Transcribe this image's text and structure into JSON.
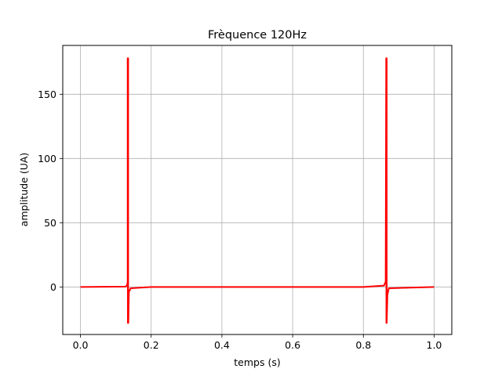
{
  "chart_data": {
    "type": "line",
    "title": "Frèquence 120Hz",
    "xlabel": "temps (s)",
    "ylabel": "amplitude (UA)",
    "xlim": [
      -0.05,
      1.05
    ],
    "ylim": [
      -37,
      188
    ],
    "xticks": [
      0.0,
      0.2,
      0.4,
      0.6,
      0.8,
      1.0
    ],
    "xtick_labels": [
      "0.0",
      "0.2",
      "0.4",
      "0.6",
      "0.8",
      "1.0"
    ],
    "yticks": [
      0,
      50,
      100,
      150
    ],
    "ytick_labels": [
      "0",
      "50",
      "100",
      "150"
    ],
    "grid": true,
    "legend": "none",
    "series": [
      {
        "color": "#ff0000",
        "x": [
          0.0,
          0.128,
          0.132,
          0.1335,
          0.1335,
          0.134,
          0.134,
          0.1345,
          0.1345,
          0.135,
          0.135,
          0.1355,
          0.137,
          0.142,
          0.2,
          0.4,
          0.6,
          0.8,
          0.858,
          0.863,
          0.8645,
          0.8645,
          0.865,
          0.865,
          0.8655,
          0.8655,
          0.866,
          0.866,
          0.868,
          0.872,
          1.0
        ],
        "y": [
          0,
          0.3,
          1.5,
          4,
          178,
          178,
          -28,
          -28,
          178,
          178,
          -28,
          -28,
          -4,
          -1,
          0,
          0,
          0,
          0,
          1,
          4,
          178,
          178,
          178,
          -28,
          -28,
          178,
          178,
          -28,
          -6,
          -1,
          0
        ]
      }
    ]
  }
}
